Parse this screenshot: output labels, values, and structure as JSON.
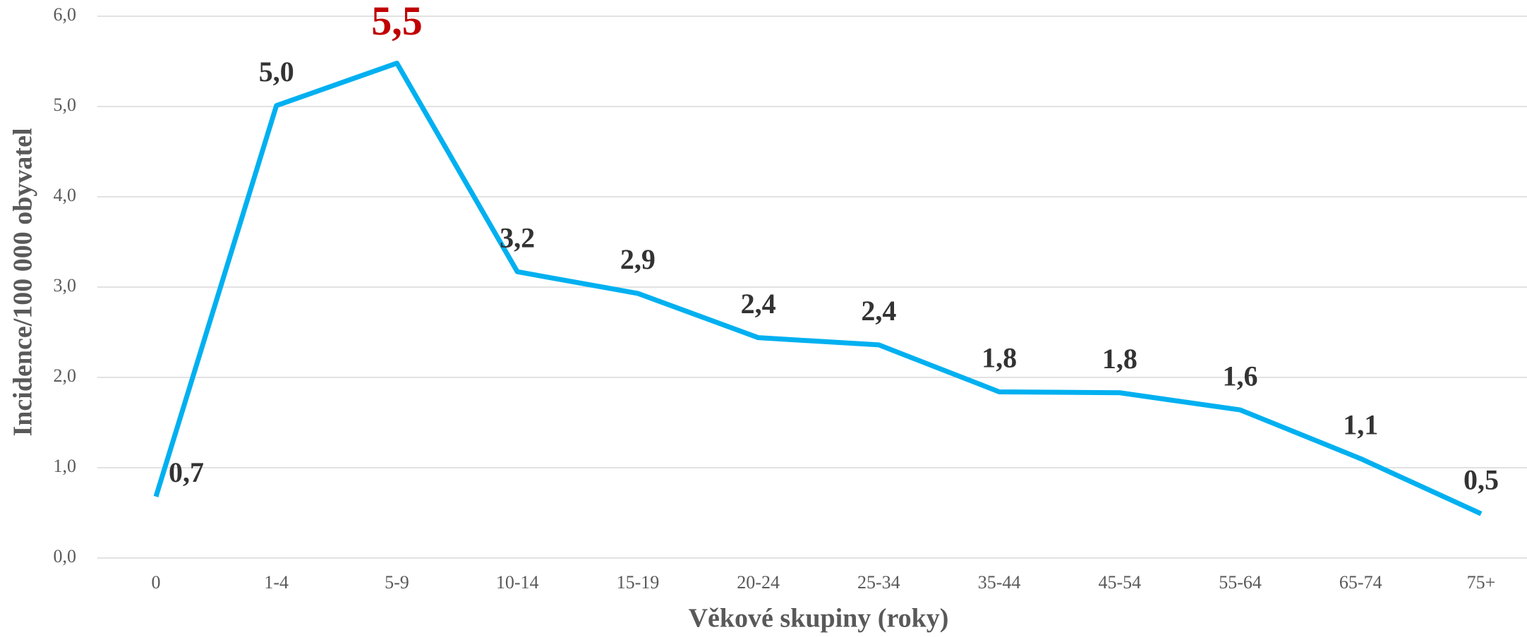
{
  "chart_data": {
    "type": "line",
    "x_label": "Věkové skupiny (roky)",
    "y_label": "Incidence/100 000 obyvatel",
    "categories": [
      "0",
      "1-4",
      "5-9",
      "10-14",
      "15-19",
      "20-24",
      "25-34",
      "35-44",
      "45-54",
      "55-64",
      "65-74",
      "75+"
    ],
    "series": [
      {
        "color": "#00b0f0",
        "values": [
          0.68,
          5.01,
          5.48,
          3.17,
          2.93,
          2.44,
          2.36,
          1.84,
          1.83,
          1.64,
          1.1,
          0.49
        ],
        "value_labels": [
          "0,7",
          "5,0",
          "5,5",
          "3,2",
          "2,9",
          "2,4",
          "2,4",
          "1,8",
          "1,8",
          "1,6",
          "1,1",
          "0,5"
        ]
      }
    ],
    "highlight_color": "#c00000",
    "ylim": [
      0,
      6
    ],
    "yticks": [
      {
        "value": 0,
        "label": "0,0"
      },
      {
        "value": 1,
        "label": "1,0"
      },
      {
        "value": 2,
        "label": "2,0"
      },
      {
        "value": 3,
        "label": "3,0"
      },
      {
        "value": 4,
        "label": "4,0"
      },
      {
        "value": 5,
        "label": "5,0"
      },
      {
        "value": 6,
        "label": "6,0"
      }
    ],
    "grid": true
  }
}
